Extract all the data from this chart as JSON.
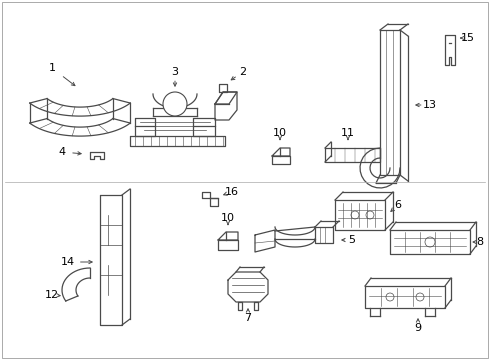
{
  "background_color": "#ffffff",
  "line_color": "#4a4a4a",
  "text_color": "#000000",
  "figsize": [
    4.9,
    3.6
  ],
  "dpi": 100,
  "border_color": "#cccccc"
}
